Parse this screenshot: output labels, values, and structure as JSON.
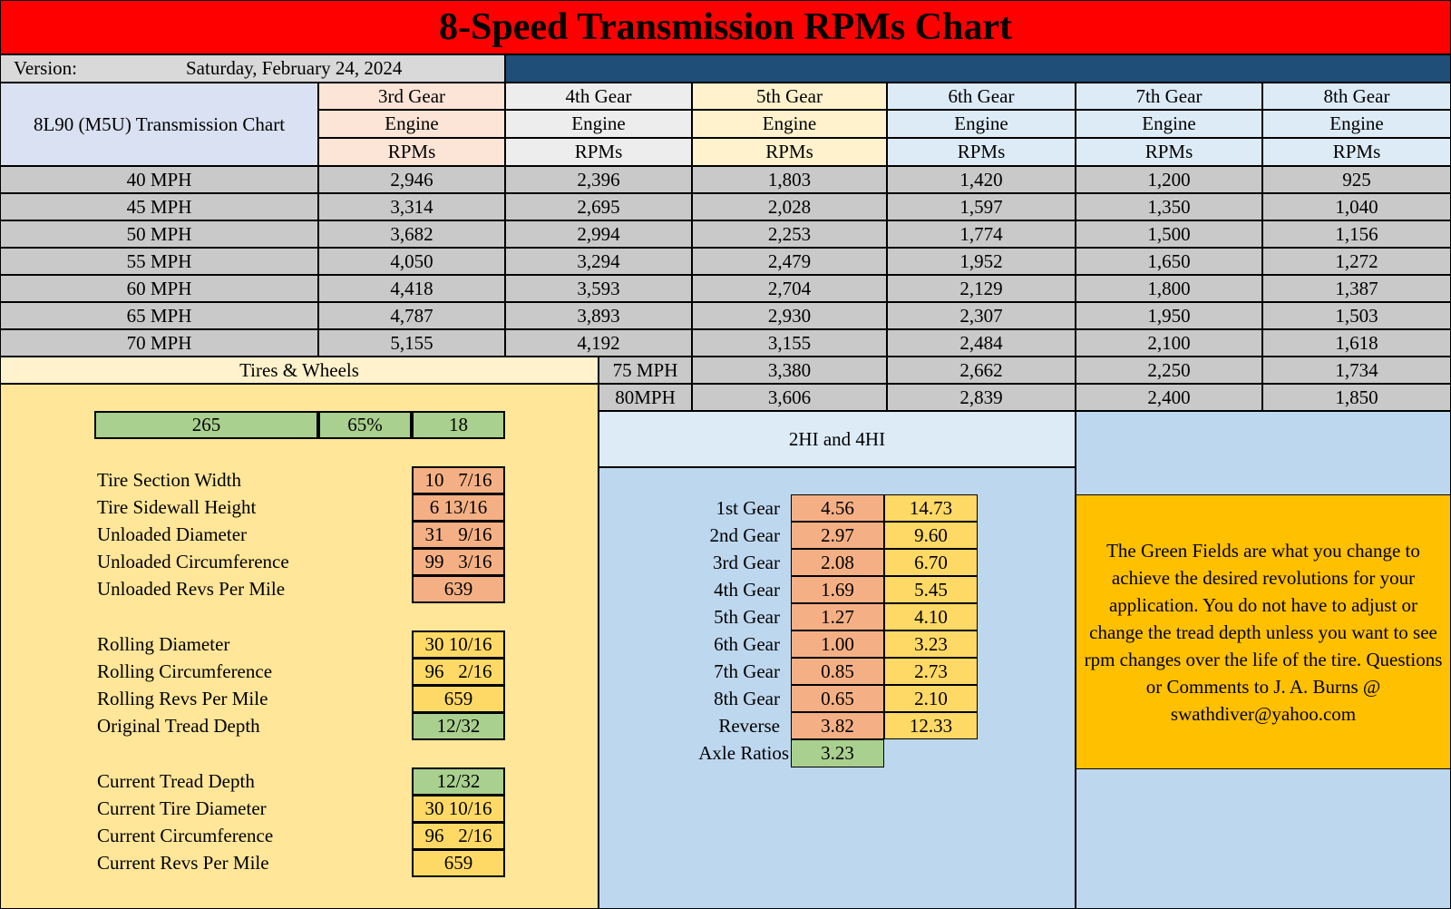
{
  "title": "8-Speed Transmission RPMs Chart",
  "version_label": "Version:",
  "version_date": "Saturday, February 24, 2024",
  "chart_name": "8L90 (M5U) Transmission Chart",
  "gear_headers": [
    {
      "gear": "3rd Gear",
      "line1": "Engine",
      "line2": "RPMs",
      "color": "#fce4d6"
    },
    {
      "gear": "4th Gear",
      "line1": "Engine",
      "line2": "RPMs",
      "color": "#ededed"
    },
    {
      "gear": "5th Gear",
      "line1": "Engine",
      "line2": "RPMs",
      "color": "#fff2cc"
    },
    {
      "gear": "6th Gear",
      "line1": "Engine",
      "line2": "RPMs",
      "color": "#ddebf7"
    },
    {
      "gear": "7th Gear",
      "line1": "Engine",
      "line2": "RPMs",
      "color": "#ddebf7"
    },
    {
      "gear": "8th Gear",
      "line1": "Engine",
      "line2": "RPMs",
      "color": "#ddebf7"
    }
  ],
  "speed_rows": [
    {
      "speed": "40 MPH",
      "values": [
        "2,946",
        "2,396",
        "1,803",
        "1,420",
        "1,200",
        "925"
      ]
    },
    {
      "speed": "45 MPH",
      "values": [
        "3,314",
        "2,695",
        "2,028",
        "1,597",
        "1,350",
        "1,040"
      ]
    },
    {
      "speed": "50 MPH",
      "values": [
        "3,682",
        "2,994",
        "2,253",
        "1,774",
        "1,500",
        "1,156"
      ]
    },
    {
      "speed": "55 MPH",
      "values": [
        "4,050",
        "3,294",
        "2,479",
        "1,952",
        "1,650",
        "1,272"
      ]
    },
    {
      "speed": "60 MPH",
      "values": [
        "4,418",
        "3,593",
        "2,704",
        "2,129",
        "1,800",
        "1,387"
      ]
    },
    {
      "speed": "65 MPH",
      "values": [
        "4,787",
        "3,893",
        "2,930",
        "2,307",
        "1,950",
        "1,503"
      ]
    },
    {
      "speed": "70 MPH",
      "values": [
        "5,155",
        "4,192",
        "3,155",
        "2,484",
        "2,100",
        "1,618"
      ]
    }
  ],
  "extra_rows": [
    {
      "speed": "75 MPH",
      "values": [
        "3,380",
        "2,662",
        "2,250",
        "1,734"
      ]
    },
    {
      "speed": "80MPH",
      "values": [
        "3,606",
        "2,839",
        "2,400",
        "1,850"
      ]
    }
  ],
  "tires": {
    "header": "Tires & Wheels",
    "inputs": [
      "265",
      "65%",
      "18"
    ],
    "group1": [
      {
        "label": "Tire Section Width",
        "value": "10   7/16"
      },
      {
        "label": "Tire Sidewall Height",
        "value": "6 13/16"
      },
      {
        "label": "Unloaded Diameter",
        "value": "31   9/16"
      },
      {
        "label": "Unloaded Circumference",
        "value": "99   3/16"
      },
      {
        "label": "Unloaded Revs Per Mile",
        "value": "639"
      }
    ],
    "group2": [
      {
        "label": "Rolling Diameter",
        "value": "30 10/16"
      },
      {
        "label": "Rolling Circumference",
        "value": "96   2/16"
      },
      {
        "label": "Rolling Revs Per Mile",
        "value": "659"
      },
      {
        "label": "Original Tread Depth",
        "value": "12/32"
      }
    ],
    "group3": [
      {
        "label": "Current Tread Depth",
        "value": "12/32"
      },
      {
        "label": "Current Tire Diameter",
        "value": "30 10/16"
      },
      {
        "label": "Current Circumference",
        "value": "96   2/16"
      },
      {
        "label": "Current Revs Per Mile",
        "value": "659"
      }
    ]
  },
  "ratios": {
    "header": "2HI and 4HI",
    "rows": [
      {
        "label": "1st Gear",
        "ratio": "4.56",
        "overall": "14.73"
      },
      {
        "label": "2nd Gear",
        "ratio": "2.97",
        "overall": "9.60"
      },
      {
        "label": "3rd Gear",
        "ratio": "2.08",
        "overall": "6.70"
      },
      {
        "label": "4th Gear",
        "ratio": "1.69",
        "overall": "5.45"
      },
      {
        "label": "5th Gear",
        "ratio": "1.27",
        "overall": "4.10"
      },
      {
        "label": "6th Gear",
        "ratio": "1.00",
        "overall": "3.23"
      },
      {
        "label": "7th Gear",
        "ratio": "0.85",
        "overall": "2.73"
      },
      {
        "label": "8th Gear",
        "ratio": "0.65",
        "overall": "2.10"
      },
      {
        "label": "Reverse",
        "ratio": "3.82",
        "overall": "12.33"
      }
    ],
    "axle_label": "Axle Ratios",
    "axle_value": "3.23"
  },
  "note": "The Green Fields are what you change to achieve the desired revolutions for your application.  You do not have to adjust or change the tread depth unless you want to see rpm changes over the life of the tire.  Questions or Comments to J. A. Burns @ swathdiver@yahoo.com",
  "colors": {
    "title_bg": "#ff0000",
    "header_blue": "#1f4e79",
    "name_cell": "#d9e1f2",
    "data_gray": "#c9c9c9",
    "tires_bg": "#ffe699",
    "tires_header": "#fff2cc",
    "input_green": "#a9d08e",
    "calc_orange": "#f4b084",
    "calc_yellow": "#ffd966",
    "ratio_bg": "#bdd7ee",
    "ratio_header": "#ddebf7",
    "note_bg": "#ffc000"
  }
}
